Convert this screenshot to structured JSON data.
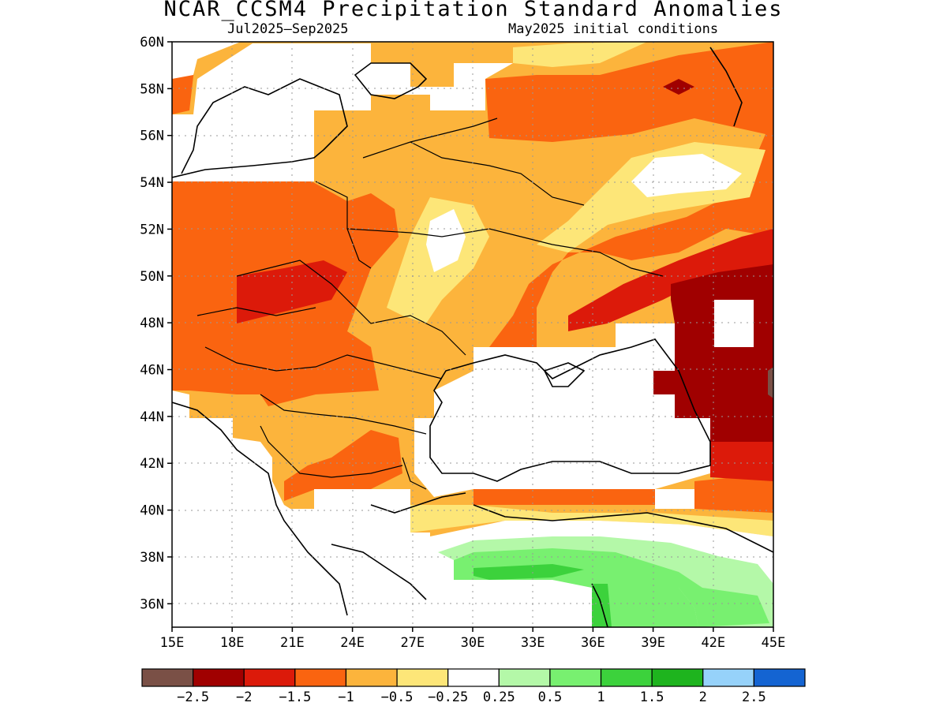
{
  "title": "NCAR_CCSM4 Precipitation Standard Anomalies",
  "subtitle_left": "Jul2025–Sep2025",
  "subtitle_right": "May2025 initial conditions",
  "map": {
    "lon_range": [
      15,
      45
    ],
    "lat_range": [
      35,
      60
    ],
    "lon_ticks": [
      "15E",
      "18E",
      "21E",
      "24E",
      "27E",
      "30E",
      "33E",
      "36E",
      "39E",
      "42E",
      "45E"
    ],
    "lat_ticks": [
      "60N",
      "58N",
      "56N",
      "54N",
      "52N",
      "50N",
      "48N",
      "46N",
      "44N",
      "42N",
      "40N",
      "38N",
      "36N"
    ],
    "grid": "dotted"
  },
  "colorbar": {
    "colors": [
      "#7a5046",
      "#a00000",
      "#dc1a0a",
      "#fa6410",
      "#fcb43c",
      "#fde678",
      "#ffffff",
      "#b4f8a8",
      "#78f070",
      "#3cd23c",
      "#1eb41e",
      "#96d2fa",
      "#1464d2"
    ],
    "labels": [
      "−2.5",
      "−2",
      "−1.5",
      "−1",
      "−0.5",
      "−0.25",
      "0.25",
      "0.5",
      "1",
      "1.5",
      "2",
      "2.5"
    ]
  }
}
